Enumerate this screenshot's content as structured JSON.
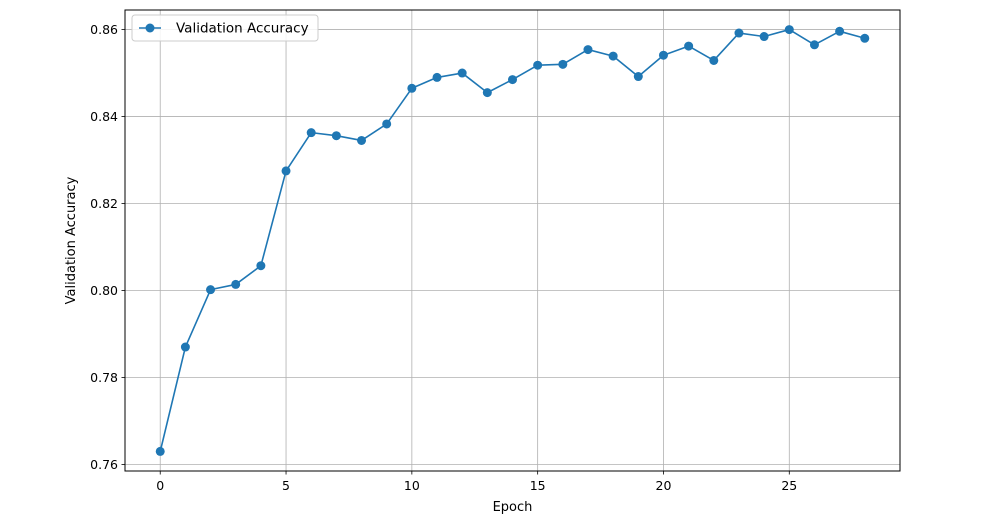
{
  "chart_data": {
    "type": "line",
    "xlabel": "Epoch",
    "ylabel": "Validation Accuracy",
    "xlim": [
      -1.4,
      29.4
    ],
    "ylim": [
      0.7585,
      0.8645
    ],
    "xticks": [
      0,
      5,
      10,
      15,
      20,
      25
    ],
    "yticks": [
      0.76,
      0.78,
      0.8,
      0.82,
      0.84,
      0.86
    ],
    "xtick_labels": [
      "0",
      "5",
      "10",
      "15",
      "20",
      "25"
    ],
    "ytick_labels": [
      "0.76",
      "0.78",
      "0.80",
      "0.82",
      "0.84",
      "0.86"
    ],
    "grid": true,
    "legend_position": "top-left",
    "series": [
      {
        "name": "Validation Accuracy",
        "color": "#1f77b4",
        "marker": "circle",
        "x": [
          0,
          1,
          2,
          3,
          4,
          5,
          6,
          7,
          8,
          9,
          10,
          11,
          12,
          13,
          14,
          15,
          16,
          17,
          18,
          19,
          20,
          21,
          22,
          23,
          24,
          25,
          26,
          27,
          28
        ],
        "values": [
          0.763,
          0.787,
          0.8002,
          0.8014,
          0.8057,
          0.8275,
          0.8363,
          0.8356,
          0.8345,
          0.8383,
          0.8465,
          0.849,
          0.85,
          0.8455,
          0.8485,
          0.8518,
          0.852,
          0.8554,
          0.8539,
          0.8492,
          0.8541,
          0.8562,
          0.8529,
          0.8592,
          0.8584,
          0.86,
          0.8565,
          0.8596,
          0.858
        ]
      }
    ]
  }
}
